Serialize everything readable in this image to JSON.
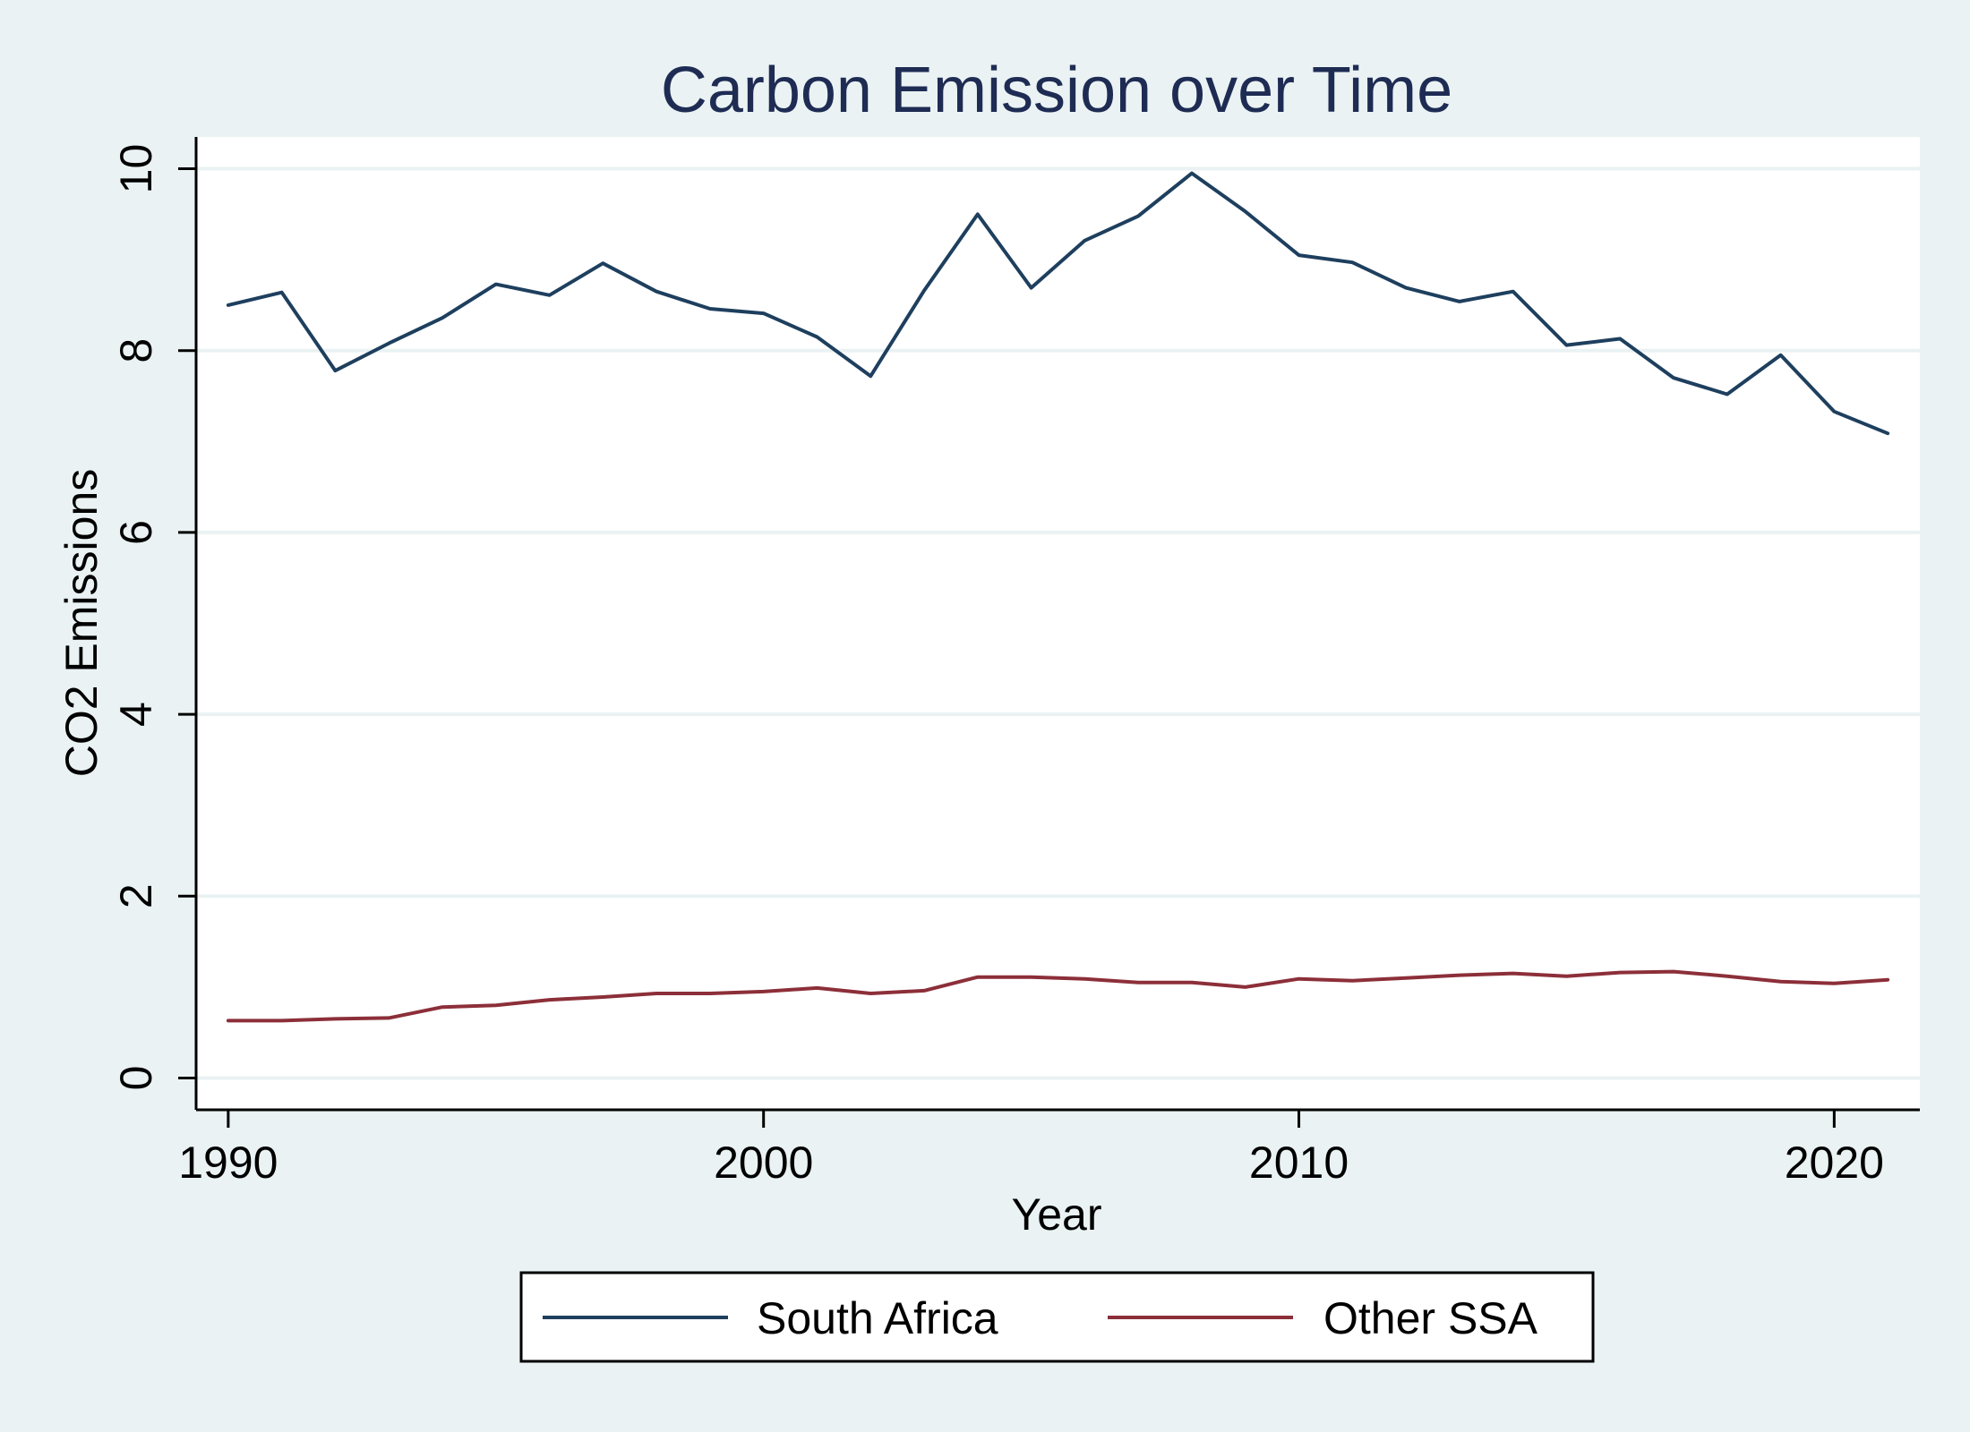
{
  "colors": {
    "page_background": "#eaf2f3",
    "plot_background": "#ffffff",
    "gridline": "#eaf2f3",
    "title": "#1e2c54",
    "axis": "#000000"
  },
  "chart_data": {
    "type": "line",
    "title": "Carbon Emission over Time",
    "xlabel": "Year",
    "ylabel": "CO2 Emissions",
    "xlim": [
      1989.4,
      2021.6
    ],
    "ylim": [
      -0.35,
      10.35
    ],
    "xticks": [
      1990,
      2000,
      2010,
      2020
    ],
    "xtick_labels": [
      "1990",
      "2000",
      "2010",
      "2020"
    ],
    "yticks": [
      0,
      2,
      4,
      6,
      8,
      10
    ],
    "ytick_labels": [
      "0",
      "2",
      "4",
      "6",
      "8",
      "10"
    ],
    "grid": true,
    "legend_position": "bottom",
    "x": [
      1990,
      1991,
      1992,
      1993,
      1994,
      1995,
      1996,
      1997,
      1998,
      1999,
      2000,
      2001,
      2002,
      2003,
      2004,
      2005,
      2006,
      2007,
      2008,
      2009,
      2010,
      2011,
      2012,
      2013,
      2014,
      2015,
      2016,
      2017,
      2018,
      2019,
      2020,
      2021
    ],
    "series": [
      {
        "name": "South Africa",
        "color": "#1e3f5e",
        "values": [
          8.5,
          8.64,
          7.78,
          8.08,
          8.36,
          8.73,
          8.61,
          8.96,
          8.65,
          8.46,
          8.41,
          8.15,
          7.72,
          8.66,
          9.5,
          8.69,
          9.21,
          9.48,
          9.95,
          9.53,
          9.05,
          8.97,
          8.69,
          8.54,
          8.65,
          8.06,
          8.13,
          7.7,
          7.52,
          7.95,
          7.33,
          7.09
        ]
      },
      {
        "name": "Other SSA",
        "color": "#8c2f39",
        "values": [
          0.63,
          0.63,
          0.65,
          0.66,
          0.78,
          0.8,
          0.86,
          0.89,
          0.93,
          0.93,
          0.95,
          0.99,
          0.93,
          0.96,
          1.11,
          1.11,
          1.09,
          1.05,
          1.05,
          1.0,
          1.09,
          1.07,
          1.1,
          1.13,
          1.15,
          1.12,
          1.16,
          1.17,
          1.12,
          1.06,
          1.04,
          1.08
        ]
      }
    ]
  }
}
